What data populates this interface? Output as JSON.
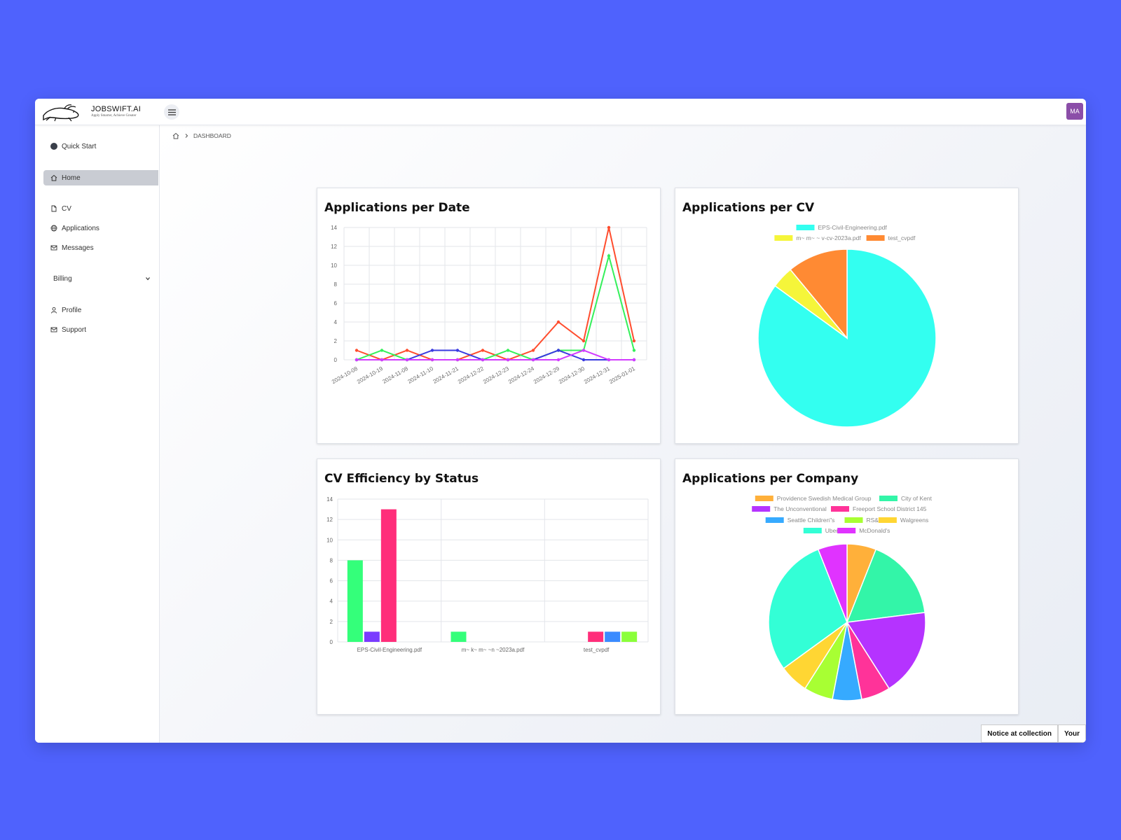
{
  "app": {
    "brand_name": "JOBSWIFT.AI",
    "brand_tagline": "Apply Smarter, Achieve Greater",
    "user_initials": "MA"
  },
  "sidebar": {
    "quick_start": "Quick Start",
    "home": "Home",
    "cv": "CV",
    "applications": "Applications",
    "messages": "Messages",
    "billing": "Billing",
    "profile": "Profile",
    "support": "Support"
  },
  "breadcrumb": {
    "current": "DASHBOARD"
  },
  "cards": {
    "date_title": "Applications per Date",
    "cv_title": "Applications per CV",
    "status_title": "CV Efficiency by Status",
    "company_title": "Applications per Company"
  },
  "footer": {
    "notice": "Notice at collection",
    "your": "Your"
  },
  "chart_data": [
    {
      "type": "line",
      "title": "Applications per Date",
      "x": [
        "2024-10-08",
        "2024-10-19",
        "2024-11-08",
        "2024-11-10",
        "2024-11-21",
        "2024-12-22",
        "2024-12-23",
        "2024-12-24",
        "2024-12-29",
        "2024-12-30",
        "2024-12-31",
        "2025-01-01"
      ],
      "ylim": [
        0,
        14
      ],
      "yticks": [
        0,
        2,
        4,
        6,
        8,
        10,
        12,
        14
      ],
      "grid": true,
      "series": [
        {
          "color": "#ff4d2e",
          "values": [
            1,
            0,
            1,
            0,
            0,
            1,
            0,
            1,
            4,
            2,
            14,
            2
          ]
        },
        {
          "color": "#34f05a",
          "values": [
            0,
            1,
            0,
            0,
            0,
            0,
            1,
            0,
            1,
            1,
            11,
            1
          ]
        },
        {
          "color": "#3a3ae0",
          "values": [
            0,
            0,
            0,
            1,
            1,
            0,
            0,
            0,
            1,
            0,
            0,
            0
          ]
        },
        {
          "color": "#d23bff",
          "values": [
            0,
            0,
            0,
            0,
            0,
            0,
            0,
            0,
            0,
            1,
            0,
            0
          ]
        }
      ]
    },
    {
      "type": "pie",
      "title": "Applications per CV",
      "labels": [
        "EPS-Civil-Engineering.pdf",
        "m~ m~ ~ v-cv-2023a.pdf",
        "test_cvpdf"
      ],
      "values": [
        85,
        4,
        11
      ],
      "colors": [
        "#33fff0",
        "#f5f53a",
        "#ff8a33"
      ],
      "legend": "top"
    },
    {
      "type": "bar",
      "title": "CV Efficiency by Status",
      "categories": [
        "EPS-Civil-Engineering.pdf",
        "m~ k~ m~ ~n ~2023a.pdf",
        "test_cvpdf"
      ],
      "ylim": [
        0,
        14
      ],
      "yticks": [
        0,
        2,
        4,
        6,
        8,
        10,
        12,
        14
      ],
      "grid": true,
      "series": [
        {
          "color": "#34ff7a",
          "values": [
            8,
            1,
            0
          ]
        },
        {
          "color": "#7a3bff",
          "values": [
            1,
            0,
            0
          ]
        },
        {
          "color": "#ff2e7a",
          "values": [
            13,
            0,
            1
          ]
        },
        {
          "color": "#3a8bff",
          "values": [
            0,
            0,
            1
          ]
        },
        {
          "color": "#8bff3a",
          "values": [
            0,
            0,
            1
          ]
        }
      ]
    },
    {
      "type": "pie",
      "title": "Applications per Company",
      "labels": [
        "Providence Swedish Medical Group",
        "City of Kent",
        "The Unconventional",
        "Freeport School District 145",
        "Seattle Children\"s",
        "RS&H",
        "Walgreens",
        "Uber",
        "McDonald's"
      ],
      "values": [
        6,
        17,
        18,
        6,
        6,
        6,
        6,
        29,
        6
      ],
      "colors": [
        "#ffb03a",
        "#33f5a8",
        "#b533ff",
        "#ff3399",
        "#36aaff",
        "#a8ff33",
        "#ffd633",
        "#33ffd6",
        "#e033ff"
      ],
      "legend": "top"
    }
  ]
}
